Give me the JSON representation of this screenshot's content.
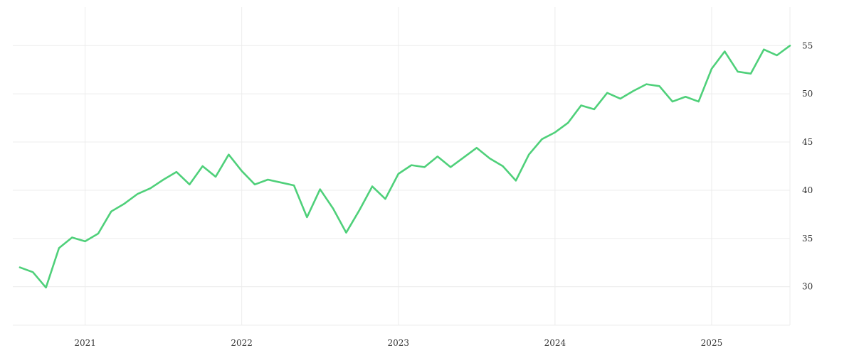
{
  "chart_data": {
    "type": "line",
    "title": "",
    "xlabel": "",
    "ylabel": "",
    "x_ticks": [
      "2021",
      "2022",
      "2023",
      "2024",
      "2025"
    ],
    "y_ticks": [
      "30",
      "35",
      "40",
      "45",
      "50",
      "55"
    ],
    "ylim": [
      26,
      59
    ],
    "xlim": [
      "2020-07-15",
      "2025-07-01"
    ],
    "y_axis_position": "right",
    "grid": true,
    "legend": "none",
    "series": [
      {
        "color": "#4fd07a",
        "points": [
          [
            "2020-08",
            32.0
          ],
          [
            "2020-09",
            31.5
          ],
          [
            "2020-10",
            29.9
          ],
          [
            "2020-11",
            34.0
          ],
          [
            "2020-12",
            35.1
          ],
          [
            "2021-01",
            34.7
          ],
          [
            "2021-02",
            35.5
          ],
          [
            "2021-03",
            37.8
          ],
          [
            "2021-04",
            38.6
          ],
          [
            "2021-05",
            39.6
          ],
          [
            "2021-06",
            40.2
          ],
          [
            "2021-07",
            41.1
          ],
          [
            "2021-08",
            41.9
          ],
          [
            "2021-09",
            40.6
          ],
          [
            "2021-10",
            42.5
          ],
          [
            "2021-11",
            41.4
          ],
          [
            "2021-12",
            43.7
          ],
          [
            "2022-01",
            42.0
          ],
          [
            "2022-02",
            40.6
          ],
          [
            "2022-03",
            41.1
          ],
          [
            "2022-04",
            40.8
          ],
          [
            "2022-05",
            40.5
          ],
          [
            "2022-06",
            37.2
          ],
          [
            "2022-07",
            40.1
          ],
          [
            "2022-08",
            38.1
          ],
          [
            "2022-09",
            35.6
          ],
          [
            "2022-10",
            37.9
          ],
          [
            "2022-11",
            40.4
          ],
          [
            "2022-12",
            39.1
          ],
          [
            "2023-01",
            41.7
          ],
          [
            "2023-02",
            42.6
          ],
          [
            "2023-03",
            42.4
          ],
          [
            "2023-04",
            43.5
          ],
          [
            "2023-05",
            42.4
          ],
          [
            "2023-06",
            43.4
          ],
          [
            "2023-07",
            44.4
          ],
          [
            "2023-08",
            43.3
          ],
          [
            "2023-09",
            42.5
          ],
          [
            "2023-10",
            41.0
          ],
          [
            "2023-11",
            43.7
          ],
          [
            "2023-12",
            45.3
          ],
          [
            "2024-01",
            46.0
          ],
          [
            "2024-02",
            47.0
          ],
          [
            "2024-03",
            48.8
          ],
          [
            "2024-04",
            48.4
          ],
          [
            "2024-05",
            50.1
          ],
          [
            "2024-06",
            49.5
          ],
          [
            "2024-07",
            50.3
          ],
          [
            "2024-08",
            51.0
          ],
          [
            "2024-09",
            50.8
          ],
          [
            "2024-10",
            49.2
          ],
          [
            "2024-11",
            49.7
          ],
          [
            "2024-12",
            49.2
          ],
          [
            "2025-01",
            52.6
          ],
          [
            "2025-02",
            54.4
          ],
          [
            "2025-03",
            52.3
          ],
          [
            "2025-04",
            52.1
          ],
          [
            "2025-05",
            54.6
          ],
          [
            "2025-06",
            54.0
          ],
          [
            "2025-07",
            55.0
          ]
        ]
      }
    ]
  }
}
